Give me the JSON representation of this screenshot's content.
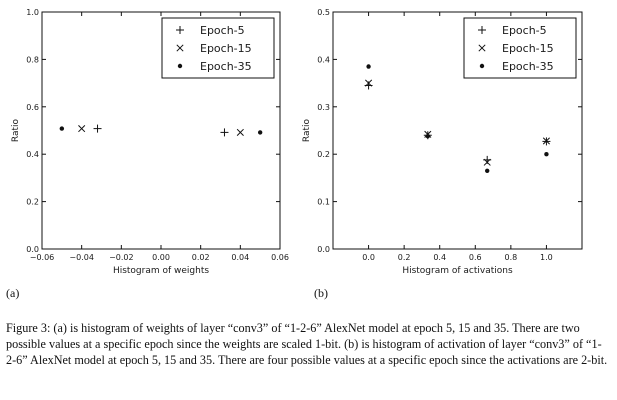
{
  "panel_labels": {
    "a": "(a)",
    "b": "(b)"
  },
  "caption": "Figure 3: (a) is histogram of weights of layer “conv3” of “1-2-6” AlexNet model at epoch 5, 15 and 35. There are two possible values at a specific epoch since the weights are scaled 1-bit. (b) is histogram of activation of layer “conv3” of “1-2-6” AlexNet model at epoch 5, 15 and 35. There are four possible values at a specific epoch since the activations are 2-bit.",
  "chart_data": [
    {
      "type": "scatter",
      "xlabel": "Histogram of weights",
      "ylabel": "Ratio",
      "xlim": [
        -0.06,
        0.06
      ],
      "ylim": [
        0.0,
        1.0
      ],
      "xticks": [
        "−0.06",
        "−0.04",
        "−0.02",
        "0.00",
        "0.02",
        "0.04",
        "0.06"
      ],
      "xtick_values": [
        -0.06,
        -0.04,
        -0.02,
        0.0,
        0.02,
        0.04,
        0.06
      ],
      "yticks": [
        "0.0",
        "0.2",
        "0.4",
        "0.6",
        "0.8",
        "1.0"
      ],
      "ytick_values": [
        0.0,
        0.2,
        0.4,
        0.6,
        0.8,
        1.0
      ],
      "legend_position": "top-right",
      "grid": false,
      "series": [
        {
          "name": "Epoch-5",
          "marker": "plus",
          "x": [
            -0.032,
            0.032
          ],
          "y": [
            0.508,
            0.492
          ]
        },
        {
          "name": "Epoch-15",
          "marker": "x",
          "x": [
            -0.04,
            0.04
          ],
          "y": [
            0.508,
            0.492
          ]
        },
        {
          "name": "Epoch-35",
          "marker": "dot",
          "x": [
            -0.05,
            0.05
          ],
          "y": [
            0.508,
            0.492
          ]
        }
      ]
    },
    {
      "type": "scatter",
      "xlabel": "Histogram of activations",
      "ylabel": "Ratio",
      "xlim": [
        -0.2,
        1.2
      ],
      "ylim": [
        0.0,
        0.5
      ],
      "xticks": [
        "0.0",
        "0.2",
        "0.4",
        "0.6",
        "0.8",
        "1.0"
      ],
      "xtick_values": [
        0.0,
        0.2,
        0.4,
        0.6,
        0.8,
        1.0
      ],
      "yticks": [
        "0.0",
        "0.1",
        "0.2",
        "0.3",
        "0.4",
        "0.5"
      ],
      "ytick_values": [
        0.0,
        0.1,
        0.2,
        0.3,
        0.4,
        0.5
      ],
      "legend_position": "top-right",
      "grid": false,
      "series": [
        {
          "name": "Epoch-5",
          "marker": "plus",
          "x": [
            0.0,
            0.333,
            0.667,
            1.0
          ],
          "y": [
            0.345,
            0.24,
            0.188,
            0.227
          ]
        },
        {
          "name": "Epoch-15",
          "marker": "x",
          "x": [
            0.0,
            0.333,
            0.667,
            1.0
          ],
          "y": [
            0.35,
            0.242,
            0.183,
            0.228
          ]
        },
        {
          "name": "Epoch-35",
          "marker": "dot",
          "x": [
            0.0,
            0.333,
            0.667,
            1.0
          ],
          "y": [
            0.385,
            0.238,
            0.165,
            0.2
          ]
        }
      ]
    }
  ]
}
